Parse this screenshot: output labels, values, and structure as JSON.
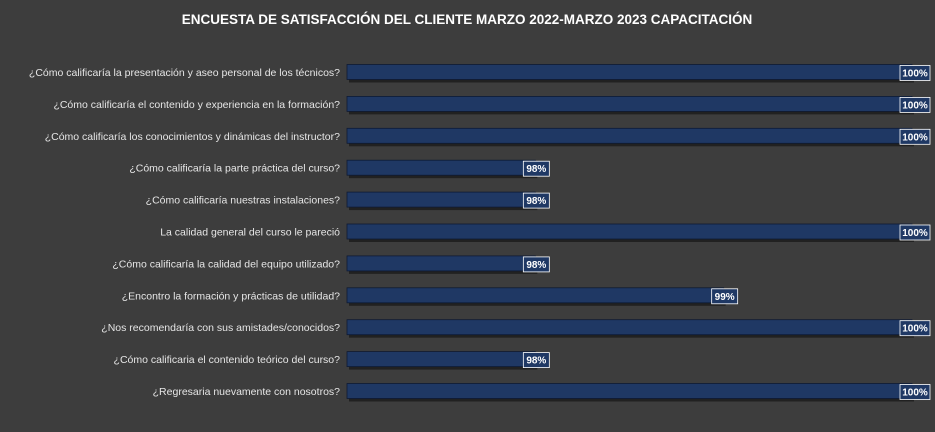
{
  "chart_data": {
    "type": "bar",
    "orientation": "horizontal",
    "title": "ENCUESTA DE SATISFACCIÓN DEL CLIENTE MARZO 2022-MARZO 2023 CAPACITACIÓN",
    "categories": [
      "¿Cómo calificaría la presentación y aseo personal de los técnicos?",
      "¿Cómo calificaría el contenido y experiencia en la formación?",
      "¿Cómo calificaría los conocimientos y dinámicas del instructor?",
      "¿Cómo calificaría la parte práctica del curso?",
      "¿Cómo calificaría nuestras instalaciones?",
      "La calidad general del curso le pareció",
      "¿Cómo calificaría la calidad del equipo utilizado?",
      "¿Encontro la formación y prácticas de utilidad?",
      "¿Nos recomendaría con sus amistades/conocidos?",
      "¿Cómo calificaria el contenido teórico del curso?",
      "¿Regresaria nuevamente con nosotros?"
    ],
    "values": [
      100,
      100,
      100,
      98,
      98,
      100,
      98,
      99,
      100,
      98,
      100
    ],
    "data_labels": [
      "100%",
      "100%",
      "100%",
      "98%",
      "98%",
      "100%",
      "98%",
      "99%",
      "100%",
      "98%",
      "100%"
    ],
    "xlim": [
      97,
      100
    ],
    "unit": "%",
    "grid": false,
    "legend": "none",
    "colors": {
      "background": "#3d3d3d",
      "bar_fill": "#1f3864",
      "bar_edge": "#0e1a33",
      "title_text": "#ffffff",
      "label_text": "#e6e6e6",
      "data_label_bg": "#1f3864",
      "data_label_border": "#ffffff",
      "data_label_text": "#ffffff"
    }
  }
}
